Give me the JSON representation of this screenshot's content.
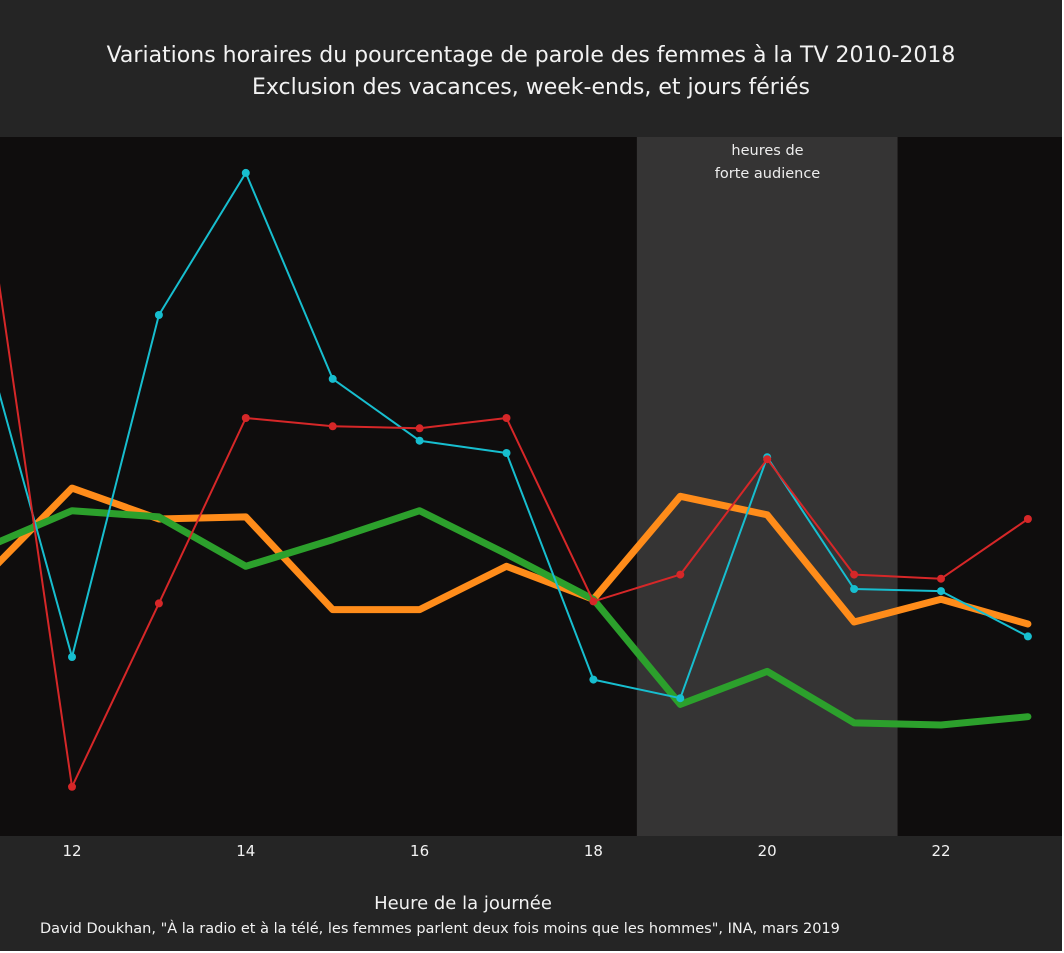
{
  "chart_data": {
    "type": "line",
    "title": "Variations horaires du pourcentage de parole des femmes à la TV 2010-2018",
    "subtitle": "Exclusion des vacances, week-ends, et jours fériés",
    "xlabel": "Heure de la journée",
    "source": "David Doukhan, \"À la radio et à la télé, les femmes parlent deux fois moins que les hommes\", INA, mars 2019",
    "xlim": [
      11.2,
      24.35
    ],
    "x_ticks": [
      "12",
      "14",
      "16",
      "18",
      "20",
      "22"
    ],
    "grid": false,
    "shaded_region": {
      "x_range": [
        18.5,
        21.5
      ],
      "label_line1": "heures de",
      "label_line2": "forte audience"
    },
    "colors": {
      "background": "#252525",
      "plot_bg": "#0f0d0d",
      "shade": "#353434"
    },
    "series": [
      {
        "color": "#17becf",
        "markers": true,
        "width": 2,
        "x": [
          11,
          12,
          13,
          14,
          15,
          16,
          17,
          18,
          19,
          20,
          21,
          22,
          23
        ],
        "y": [
          47,
          31.7,
          48.3,
          55.2,
          45.2,
          42.2,
          41.6,
          30.6,
          29.7,
          41.4,
          35.0,
          34.9,
          32.7
        ]
      },
      {
        "color": "#d62728",
        "markers": true,
        "width": 2,
        "x": [
          11,
          12,
          13,
          14,
          15,
          16,
          17,
          18,
          19,
          20,
          21,
          22,
          23
        ],
        "y": [
          54.5,
          25.4,
          34.3,
          43.3,
          42.9,
          42.8,
          43.3,
          34.4,
          35.7,
          41.3,
          35.7,
          35.5,
          38.4
        ]
      },
      {
        "color": "#ff8c1a",
        "markers": false,
        "width": 7,
        "x": [
          11,
          12,
          13,
          14,
          15,
          16,
          17,
          18,
          19,
          20,
          21,
          22,
          23
        ],
        "y": [
          35.6,
          39.9,
          38.4,
          38.5,
          34.0,
          34.0,
          36.1,
          34.5,
          39.5,
          38.6,
          33.4,
          34.5,
          33.3
        ]
      },
      {
        "color": "#2ca02c",
        "markers": false,
        "width": 7,
        "x": [
          11,
          12,
          13,
          14,
          15,
          16,
          17,
          18,
          19,
          20,
          21,
          22,
          23
        ],
        "y": [
          37.0,
          38.8,
          38.5,
          36.1,
          37.4,
          38.8,
          36.7,
          34.5,
          29.4,
          31.0,
          28.5,
          28.4,
          28.8
        ]
      }
    ],
    "y_px_anchor": {
      "y_low": 25,
      "y_high": 55,
      "note_ignore": true
    }
  }
}
